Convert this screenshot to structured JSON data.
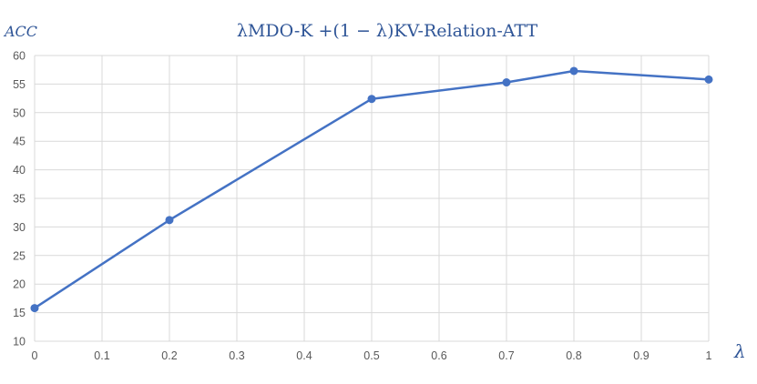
{
  "chart_data": {
    "type": "line",
    "title": "λMDO-K +(1 − λ)KV-Relation-ATT",
    "xlabel": "λ",
    "ylabel": "ACC",
    "x": [
      0,
      0.2,
      0.5,
      0.7,
      0.8,
      1
    ],
    "series": [
      {
        "values": [
          15.8,
          31.2,
          52.4,
          55.3,
          57.3,
          55.8
        ]
      }
    ],
    "xlim": [
      0,
      1
    ],
    "ylim": [
      10,
      60
    ],
    "x_ticks": [
      "0",
      "0.1",
      "0.2",
      "0.3",
      "0.4",
      "0.5",
      "0.6",
      "0.7",
      "0.8",
      "0.9",
      "1"
    ],
    "y_ticks": [
      "10",
      "15",
      "20",
      "25",
      "30",
      "35",
      "40",
      "45",
      "50",
      "55",
      "60"
    ],
    "grid": true,
    "legend": "none",
    "colors": {
      "line": "#4472c4",
      "title": "#2f5597",
      "grid": "#d9d9d9",
      "tick": "#595959"
    }
  }
}
